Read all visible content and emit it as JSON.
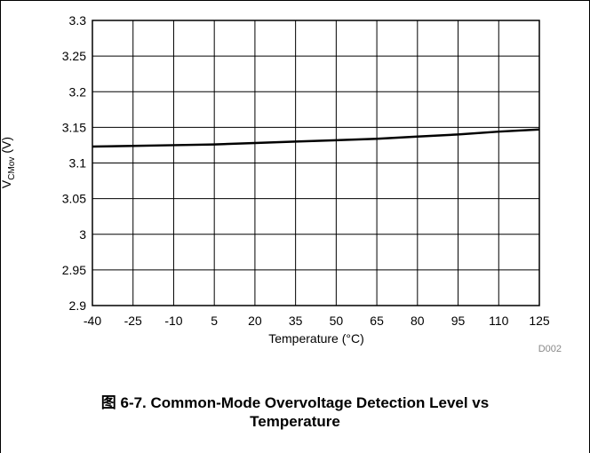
{
  "chart_data": {
    "type": "line",
    "x": [
      -40,
      -25,
      -10,
      5,
      20,
      35,
      50,
      65,
      80,
      95,
      110,
      125
    ],
    "values": [
      3.123,
      3.124,
      3.125,
      3.126,
      3.128,
      3.13,
      3.132,
      3.134,
      3.137,
      3.14,
      3.144,
      3.147
    ],
    "color": "#000000",
    "xlim": [
      -40,
      125
    ],
    "xticks": [
      -40,
      -25,
      -10,
      5,
      20,
      35,
      50,
      65,
      80,
      95,
      110,
      125
    ],
    "ylim": [
      2.9,
      3.3
    ],
    "yticks": [
      2.9,
      2.95,
      3,
      3.05,
      3.1,
      3.15,
      3.2,
      3.25,
      3.3
    ],
    "grid": true,
    "x_label": "Temperature (°C)",
    "y_label": {
      "main": "V",
      "sub": "CMov",
      "unit": "(V)"
    },
    "annotation": "D002",
    "caption": "图 6-7. Common-Mode Overvoltage Detection Level vs Temperature"
  }
}
